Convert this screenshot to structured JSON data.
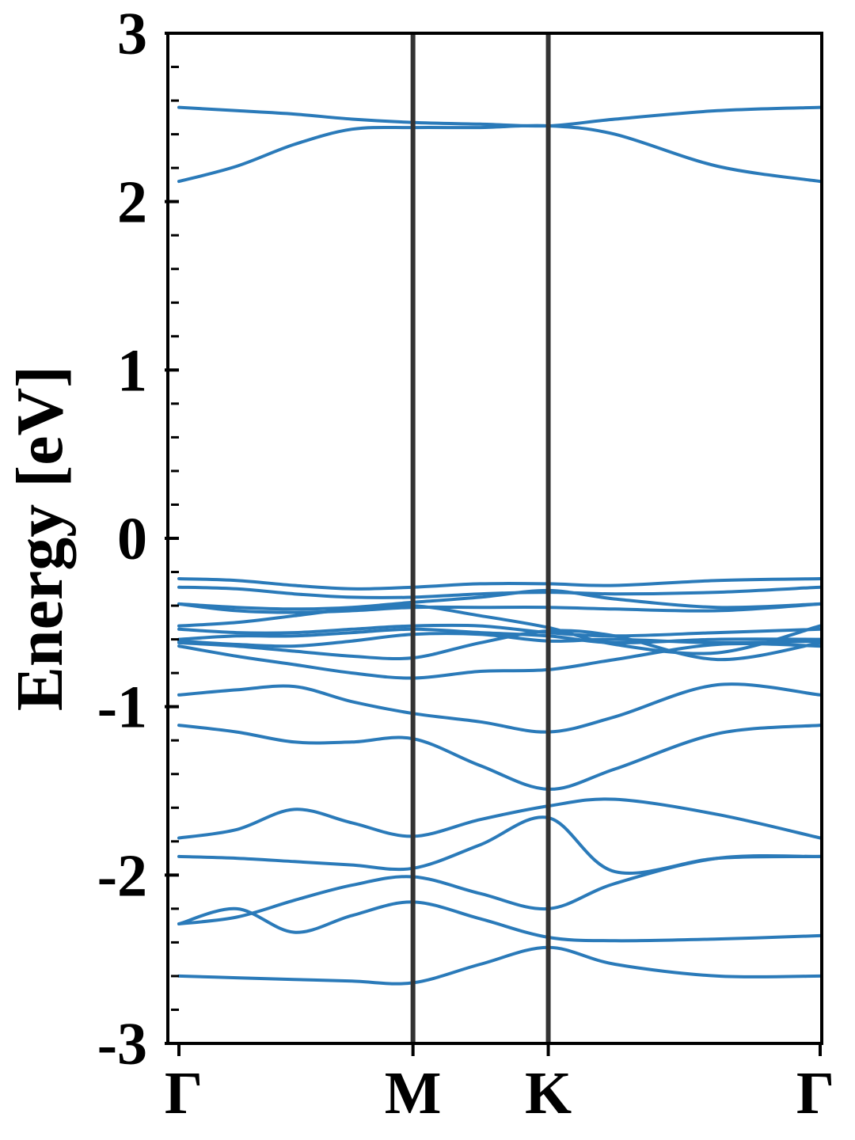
{
  "chart_data": {
    "type": "line",
    "title": "",
    "xlabel": "",
    "ylabel": "Energy [eV]",
    "xlim": [
      0,
      1
    ],
    "ylim": [
      -3,
      3
    ],
    "grid": false,
    "legend": "none",
    "colors": {
      "band": "#2a7ab9",
      "divider": "#333333",
      "axis": "#000000"
    },
    "xticks": [
      {
        "label": "Γ",
        "x": 0.0
      },
      {
        "label": "M",
        "x": 0.365
      },
      {
        "label": "K",
        "x": 0.576
      },
      {
        "label": "Γ",
        "x": 1.0
      }
    ],
    "yticks": [
      {
        "label": "3",
        "value": 3
      },
      {
        "label": "2",
        "value": 2
      },
      {
        "label": "1",
        "value": 1
      },
      {
        "label": "0",
        "value": 0
      },
      {
        "label": "-1",
        "value": -1
      },
      {
        "label": "-2",
        "value": -2
      },
      {
        "label": "-3",
        "value": -3
      }
    ],
    "ytick_minor_step": 0.2,
    "x_samples": [
      0.0,
      0.09,
      0.18,
      0.27,
      0.365,
      0.47,
      0.576,
      0.68,
      0.84,
      1.0
    ],
    "series": [
      {
        "values": [
          2.56,
          2.54,
          2.52,
          2.49,
          2.47,
          2.46,
          2.45,
          2.49,
          2.54,
          2.56
        ]
      },
      {
        "values": [
          2.12,
          2.21,
          2.34,
          2.43,
          2.44,
          2.44,
          2.45,
          2.4,
          2.21,
          2.12
        ]
      },
      {
        "values": [
          -0.24,
          -0.25,
          -0.28,
          -0.3,
          -0.29,
          -0.27,
          -0.27,
          -0.28,
          -0.25,
          -0.24
        ]
      },
      {
        "values": [
          -0.29,
          -0.3,
          -0.33,
          -0.35,
          -0.35,
          -0.33,
          -0.32,
          -0.33,
          -0.32,
          -0.29
        ]
      },
      {
        "values": [
          -0.39,
          -0.41,
          -0.42,
          -0.41,
          -0.38,
          -0.35,
          -0.31,
          -0.36,
          -0.41,
          -0.39
        ]
      },
      {
        "values": [
          -0.39,
          -0.43,
          -0.44,
          -0.43,
          -0.41,
          -0.41,
          -0.41,
          -0.42,
          -0.43,
          -0.39
        ]
      },
      {
        "values": [
          -0.52,
          -0.5,
          -0.46,
          -0.42,
          -0.4,
          -0.46,
          -0.53,
          -0.63,
          -0.68,
          -0.52
        ]
      },
      {
        "values": [
          -0.54,
          -0.56,
          -0.56,
          -0.54,
          -0.52,
          -0.52,
          -0.56,
          -0.58,
          -0.56,
          -0.54
        ]
      },
      {
        "values": [
          -0.6,
          -0.58,
          -0.58,
          -0.56,
          -0.54,
          -0.56,
          -0.58,
          -0.62,
          -0.6,
          -0.6
        ]
      },
      {
        "values": [
          -0.61,
          -0.63,
          -0.64,
          -0.61,
          -0.57,
          -0.57,
          -0.61,
          -0.6,
          -0.62,
          -0.61
        ]
      },
      {
        "values": [
          -0.62,
          -0.64,
          -0.67,
          -0.7,
          -0.71,
          -0.62,
          -0.55,
          -0.58,
          -0.72,
          -0.62
        ]
      },
      {
        "values": [
          -0.64,
          -0.7,
          -0.75,
          -0.8,
          -0.83,
          -0.79,
          -0.78,
          -0.72,
          -0.63,
          -0.64
        ]
      },
      {
        "values": [
          -0.93,
          -0.9,
          -0.88,
          -0.97,
          -1.04,
          -1.09,
          -1.15,
          -1.06,
          -0.87,
          -0.93
        ]
      },
      {
        "values": [
          -1.11,
          -1.15,
          -1.21,
          -1.21,
          -1.19,
          -1.35,
          -1.49,
          -1.37,
          -1.16,
          -1.11
        ]
      },
      {
        "values": [
          -1.78,
          -1.73,
          -1.61,
          -1.69,
          -1.77,
          -1.67,
          -1.59,
          -1.55,
          -1.64,
          -1.78
        ]
      },
      {
        "values": [
          -1.89,
          -1.9,
          -1.92,
          -1.94,
          -1.96,
          -1.82,
          -1.66,
          -1.98,
          -1.9,
          -1.89
        ]
      },
      {
        "values": [
          -2.29,
          -2.25,
          -2.15,
          -2.06,
          -2.01,
          -2.11,
          -2.2,
          -2.05,
          -1.9,
          -1.89
        ]
      },
      {
        "values": [
          -2.29,
          -2.2,
          -2.34,
          -2.24,
          -2.16,
          -2.26,
          -2.37,
          -2.39,
          -2.38,
          -2.36
        ]
      },
      {
        "values": [
          -2.6,
          -2.61,
          -2.62,
          -2.63,
          -2.64,
          -2.53,
          -2.43,
          -2.53,
          -2.6,
          -2.6
        ]
      }
    ]
  }
}
